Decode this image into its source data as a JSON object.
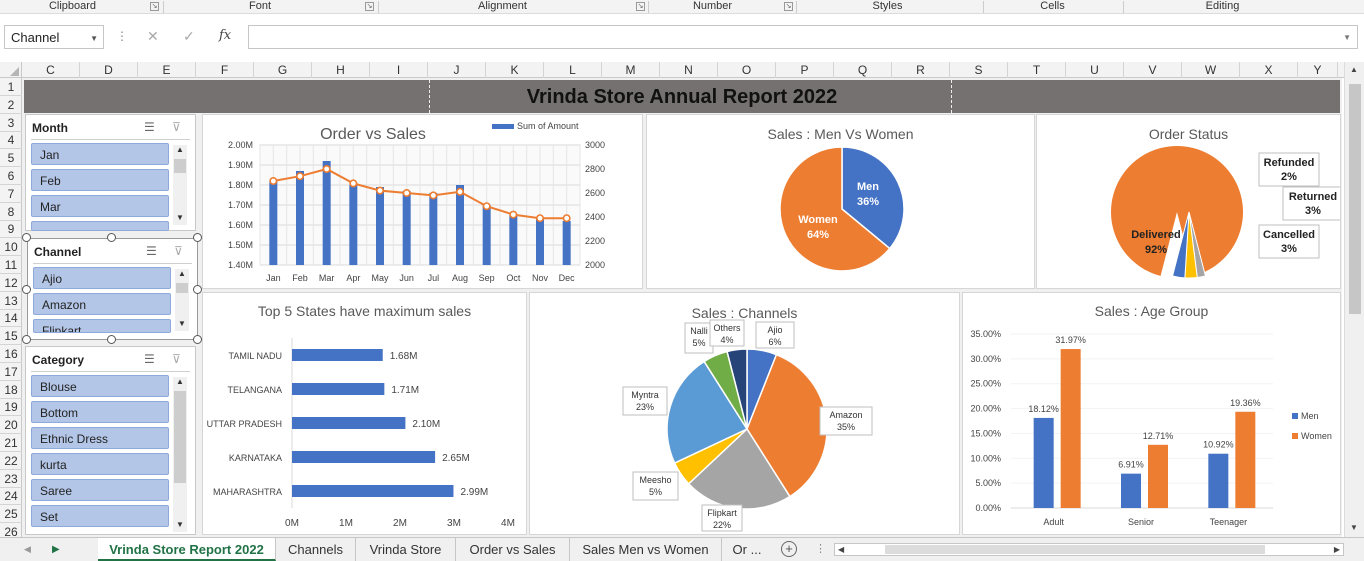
{
  "ribbon": {
    "groups": [
      {
        "label": "Clipboard"
      },
      {
        "label": "Font"
      },
      {
        "label": "Alignment"
      },
      {
        "label": "Number"
      },
      {
        "label": "Styles"
      },
      {
        "label": "Cells"
      },
      {
        "label": "Editing"
      }
    ]
  },
  "formula_bar": {
    "name_box": "Channel",
    "formula": ""
  },
  "columns": [
    "C",
    "D",
    "E",
    "F",
    "G",
    "H",
    "I",
    "J",
    "K",
    "L",
    "M",
    "N",
    "O",
    "P",
    "Q",
    "R",
    "S",
    "T",
    "U",
    "V",
    "W",
    "X",
    "Y"
  ],
  "rows": [
    "1",
    "2",
    "3",
    "4",
    "5",
    "6",
    "7",
    "8",
    "9",
    "10",
    "11",
    "12",
    "13",
    "14",
    "15",
    "16",
    "17",
    "18",
    "19",
    "20",
    "21",
    "22",
    "23",
    "24",
    "25",
    "26"
  ],
  "report_title": "Vrinda Store Annual Report 2022",
  "slicers": {
    "month": {
      "title": "Month",
      "items": [
        "Jan",
        "Feb",
        "Mar"
      ]
    },
    "channel": {
      "title": "Channel",
      "items": [
        "Ajio",
        "Amazon",
        "Flipkart"
      ]
    },
    "category": {
      "title": "Category",
      "items": [
        "Blouse",
        "Bottom",
        "Ethnic Dress",
        "kurta",
        "Saree",
        "Set"
      ]
    }
  },
  "charts": {
    "order_vs_sales": {
      "title": "Order vs Sales",
      "legend": "Sum of Amount",
      "y_left_ticks": [
        "2.00M",
        "1.90M",
        "1.80M",
        "1.70M",
        "1.60M",
        "1.50M",
        "1.40M"
      ],
      "y_right_ticks": [
        "3000",
        "2800",
        "2600",
        "2400",
        "2200",
        "2000"
      ],
      "chart_data": {
        "type": "bar",
        "categories": [
          "Jan",
          "Feb",
          "Mar",
          "Apr",
          "May",
          "Jun",
          "Jul",
          "Aug",
          "Sep",
          "Oct",
          "Nov",
          "Dec"
        ],
        "series": [
          {
            "name": "Sum of Amount",
            "values": [
              1.82,
              1.87,
              1.92,
              1.8,
              1.79,
              1.77,
              1.76,
              1.8,
              1.7,
              1.65,
              1.63,
              1.62
            ]
          },
          {
            "values": [
              2700,
              2740,
              2800,
              2680,
              2620,
              2600,
              2580,
              2610,
              2490,
              2420,
              2390,
              2390
            ]
          }
        ],
        "ylim": [
          1.4,
          2.0
        ],
        "y2lim": [
          2000,
          3000
        ]
      }
    },
    "men_women": {
      "title": "Sales : Men Vs Women",
      "chart_data": {
        "type": "pie",
        "labels": [
          "Men",
          "Women"
        ],
        "values": [
          36,
          64
        ],
        "display": [
          "36%",
          "64%"
        ],
        "colors": [
          "#4472c4",
          "#ed7d31"
        ]
      }
    },
    "order_status": {
      "title": "Order Status",
      "chart_data": {
        "type": "pie",
        "labels": [
          "Delivered",
          "Refunded",
          "Returned",
          "Cancelled"
        ],
        "values": [
          92,
          2,
          3,
          3
        ],
        "display": [
          "92%",
          "2%",
          "3%",
          "3%"
        ],
        "colors": [
          "#ed7d31",
          "#a5a5a5",
          "#ffc000",
          "#4472c4"
        ]
      }
    },
    "top_states": {
      "title": "Top 5 States have maximum sales",
      "x_ticks": [
        "0M",
        "1M",
        "2M",
        "3M",
        "4M"
      ],
      "chart_data": {
        "type": "bar",
        "orientation": "horizontal",
        "categories": [
          "TAMIL NADU",
          "TELANGANA",
          "UTTAR PRADESH",
          "KARNATAKA",
          "MAHARASHTRA"
        ],
        "values": [
          1.68,
          1.71,
          2.1,
          2.65,
          2.99
        ],
        "labels": [
          "1.68M",
          "1.71M",
          "2.10M",
          "2.65M",
          "2.99M"
        ],
        "xlim": [
          0,
          4
        ]
      }
    },
    "channels": {
      "title": "Sales : Channels",
      "chart_data": {
        "type": "pie",
        "labels": [
          "Ajio",
          "Amazon",
          "Flipkart",
          "Meesho",
          "Myntra",
          "Nalli",
          "Others"
        ],
        "values": [
          6,
          35,
          22,
          5,
          23,
          5,
          4
        ],
        "display": [
          "6%",
          "35%",
          "22%",
          "5%",
          "23%",
          "5%",
          "4%"
        ],
        "colors": [
          "#4472c4",
          "#ed7d31",
          "#a5a5a5",
          "#ffc000",
          "#5b9bd5",
          "#70ad47",
          "#264478"
        ]
      }
    },
    "age_group": {
      "title": "Sales : Age Group",
      "y_ticks": [
        "35.00%",
        "30.00%",
        "25.00%",
        "20.00%",
        "15.00%",
        "10.00%",
        "5.00%",
        "0.00%"
      ],
      "chart_data": {
        "type": "bar",
        "categories": [
          "Adult",
          "Senior",
          "Teenager"
        ],
        "series": [
          {
            "name": "Men",
            "values": [
              18.12,
              6.91,
              10.92
            ],
            "labels": [
              "18.12%",
              "6.91%",
              "10.92%"
            ],
            "color": "#4472c4"
          },
          {
            "name": "Women",
            "values": [
              31.97,
              12.71,
              19.36
            ],
            "labels": [
              "31.97%",
              "12.71%",
              "19.36%"
            ],
            "color": "#ed7d31"
          }
        ],
        "ylim": [
          0,
          35
        ],
        "legend": "right"
      }
    }
  },
  "sheet_tabs": [
    "Vrinda Store Report 2022",
    "Channels",
    "Vrinda Store",
    "Order vs Sales",
    "Sales Men vs Women",
    "Or ..."
  ],
  "active_tab": "Vrinda Store Report 2022"
}
